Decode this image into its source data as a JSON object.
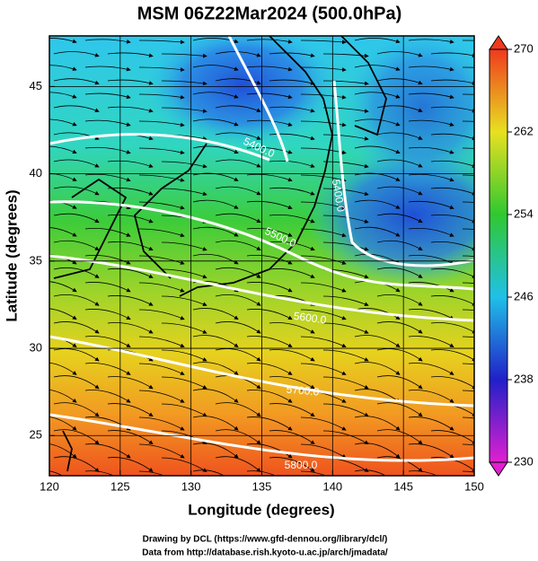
{
  "chart_data": {
    "type": "map",
    "title": "MSM 06Z22Mar2024 (500.0hPa)",
    "x_label": "Longitude (degrees)",
    "y_label": "Latitude  (degrees)",
    "xlim": [
      120,
      150
    ],
    "ylim": [
      22.7,
      47.9
    ],
    "xticks": [
      120,
      125,
      130,
      135,
      140,
      145,
      150
    ],
    "yticks": [
      25,
      30,
      35,
      40,
      45
    ],
    "grid": true,
    "colorbar": {
      "lim": [
        230,
        270
      ],
      "ticks": [
        230,
        238,
        246,
        254,
        262,
        270
      ]
    },
    "contour_labels": [
      "5400.0",
      "5400.0",
      "5500.0",
      "5600.0",
      "5700.0",
      "5800.0"
    ],
    "credits": [
      "Drawing by DCL (https://www.gfd-dennou.org/library/dcl/)",
      "Data from http://database.rish.kyoto-u.ac.jp/arch/jmadata/"
    ]
  }
}
